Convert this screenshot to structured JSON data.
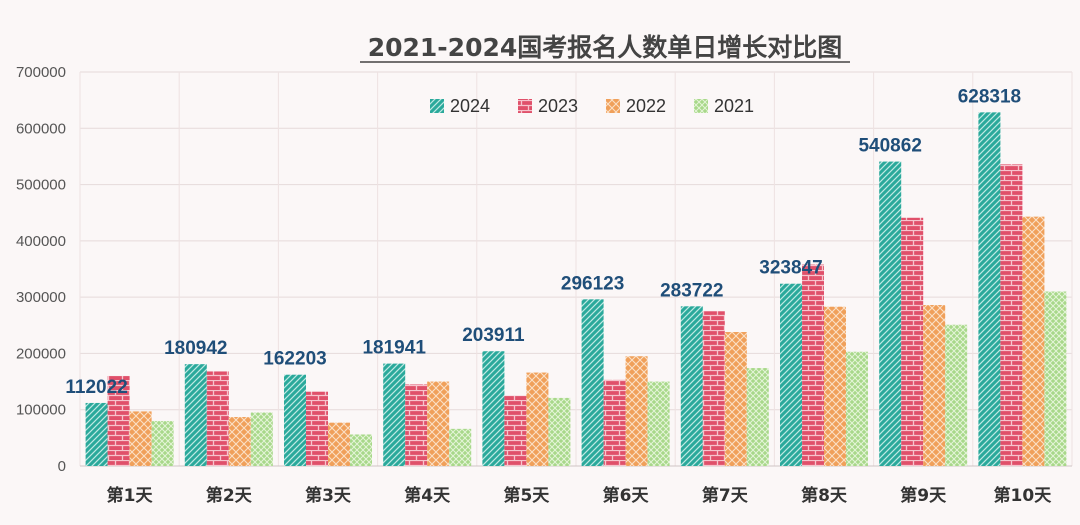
{
  "chart_data": {
    "type": "bar",
    "title": "2021-2024国考报名人数单日增长对比图",
    "categories": [
      "第1天",
      "第2天",
      "第3天",
      "第4天",
      "第5天",
      "第6天",
      "第7天",
      "第8天",
      "第9天",
      "第10天"
    ],
    "ylim": [
      0,
      700000
    ],
    "yticks": [
      0,
      100000,
      200000,
      300000,
      400000,
      500000,
      600000,
      700000
    ],
    "grid": true,
    "legend_position": "top-center",
    "series": [
      {
        "name": "2024",
        "color": "#2aa99b",
        "values": [
          112022,
          180942,
          162203,
          181941,
          203911,
          296123,
          283722,
          323847,
          540862,
          628318
        ],
        "show_labels": true
      },
      {
        "name": "2023",
        "color": "#e0506a",
        "values": [
          160000,
          168000,
          132000,
          145000,
          125000,
          153000,
          275000,
          358000,
          441000,
          536000
        ],
        "show_labels": false
      },
      {
        "name": "2022",
        "color": "#f0a05a",
        "values": [
          97000,
          87000,
          77000,
          150000,
          166000,
          195000,
          238000,
          283000,
          286000,
          443000
        ],
        "show_labels": false
      },
      {
        "name": "2021",
        "color": "#a8d88a",
        "values": [
          80000,
          95000,
          56000,
          66000,
          121000,
          150000,
          174000,
          203000,
          251000,
          310000
        ],
        "show_labels": false
      }
    ]
  }
}
